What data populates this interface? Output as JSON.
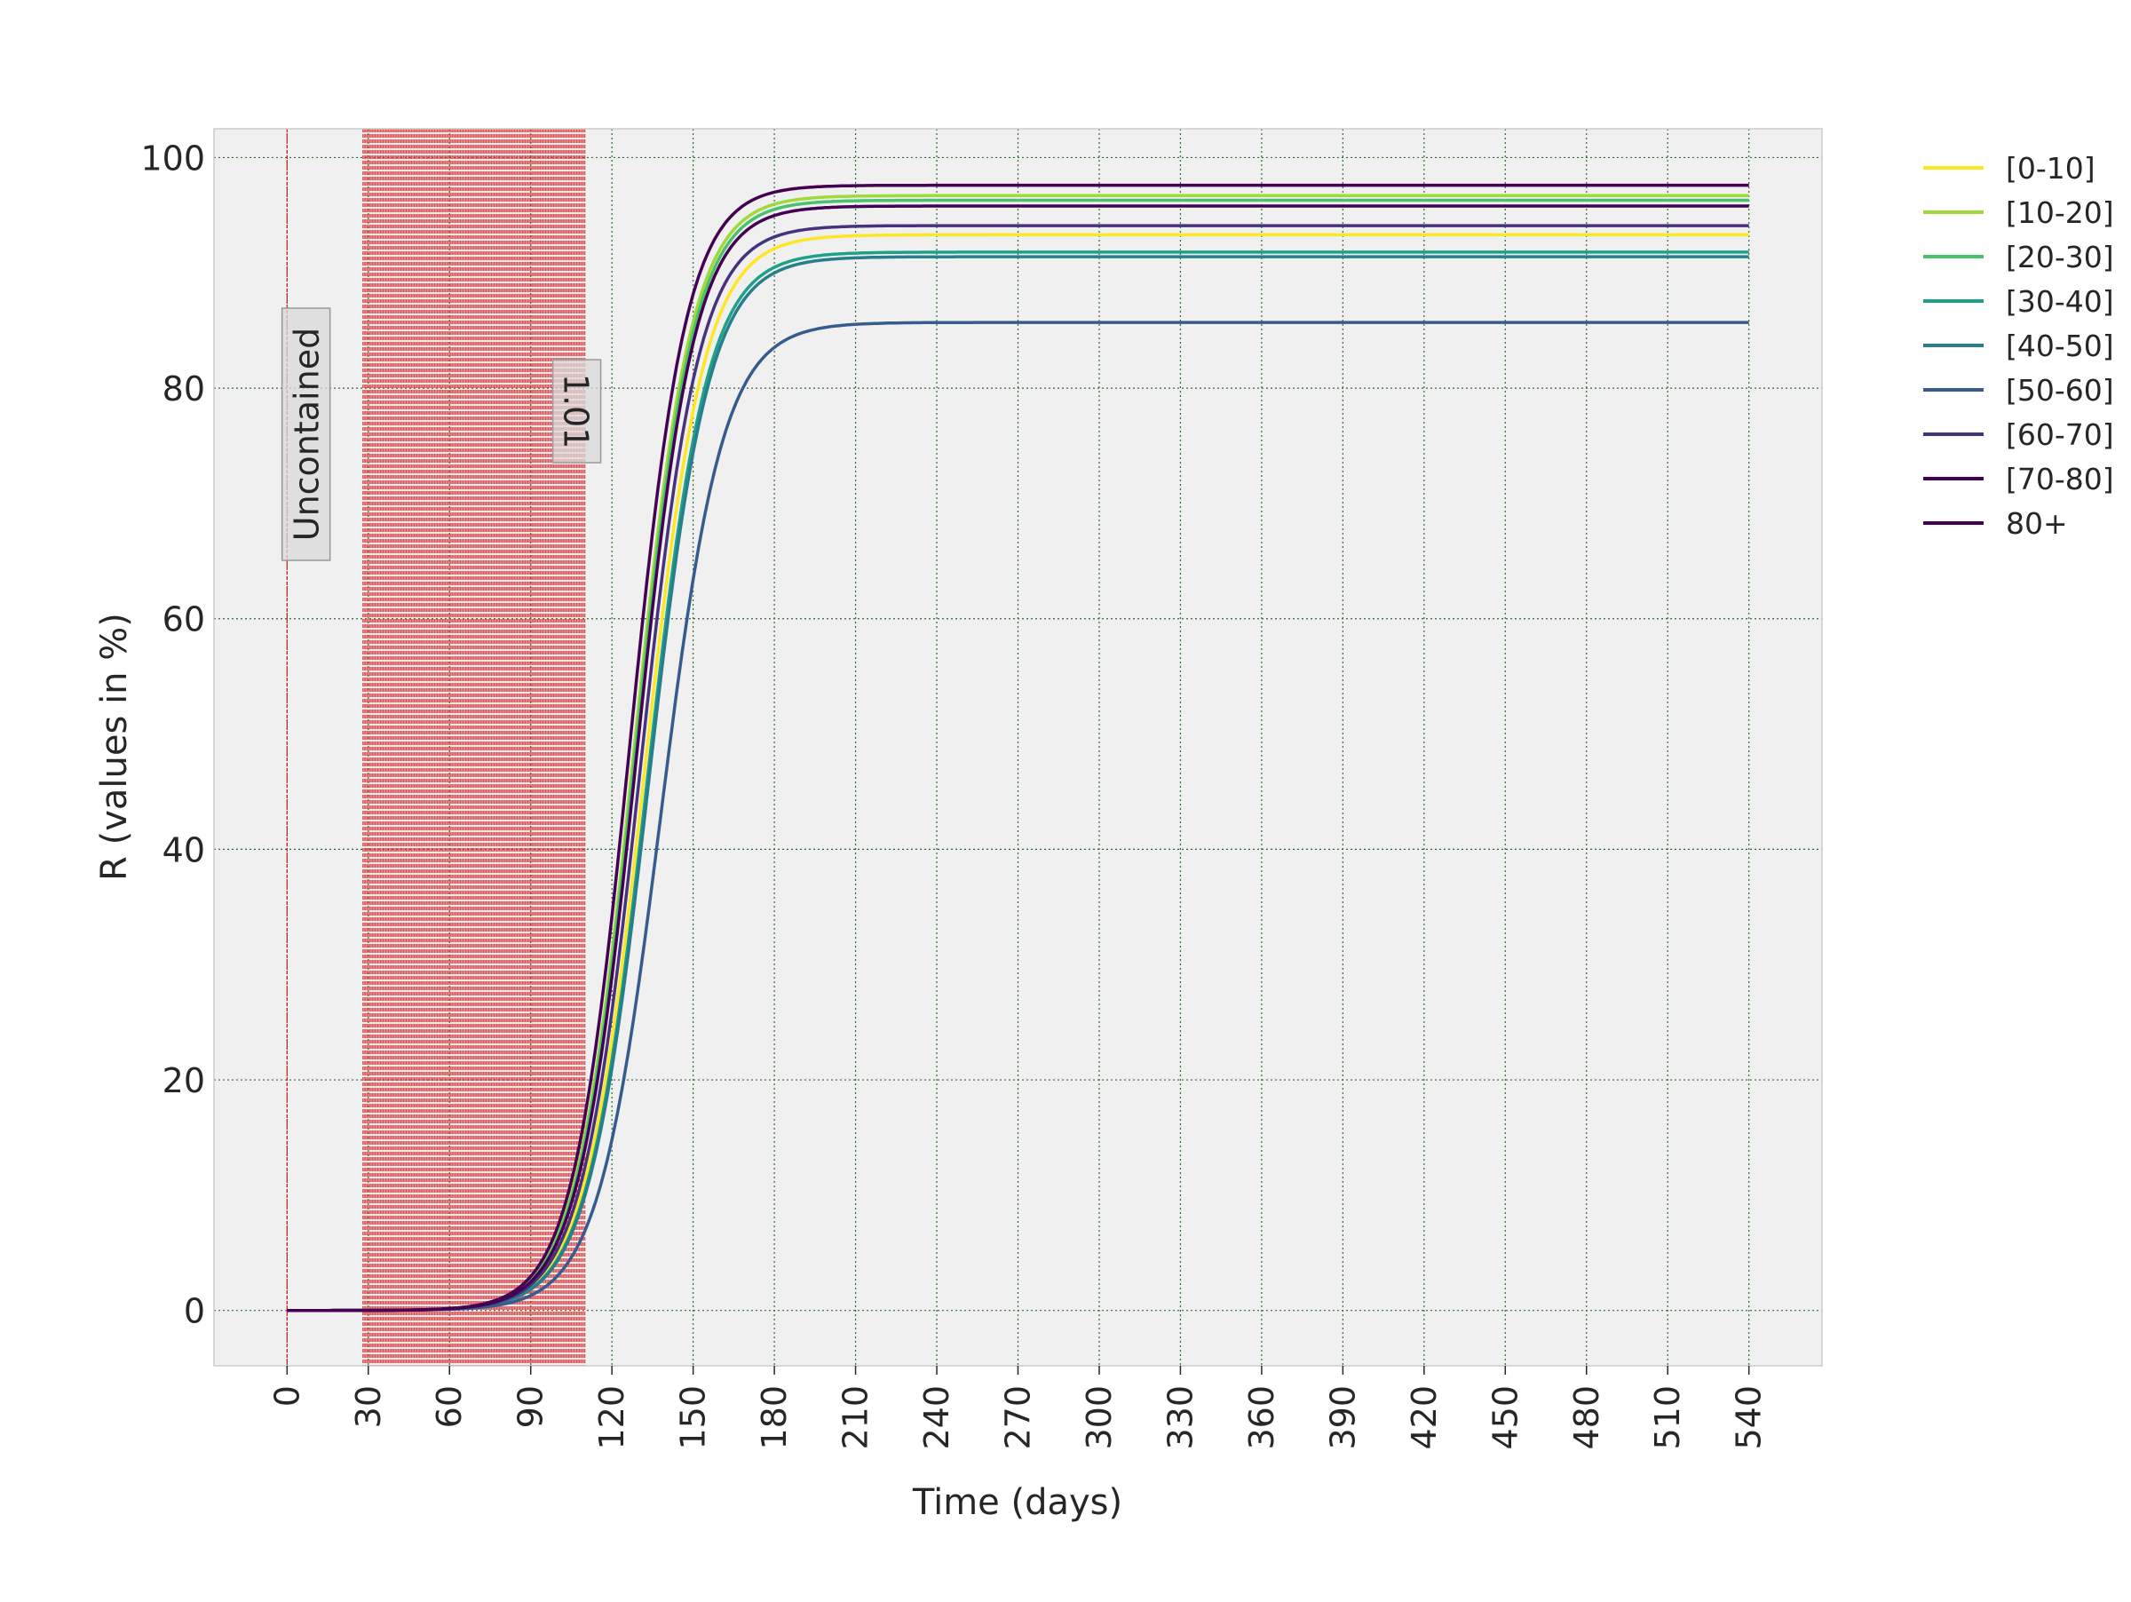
{
  "chart_data": {
    "type": "line",
    "title": "",
    "xlabel": "Time (days)",
    "ylabel": "R (values in %)",
    "xlim": [
      -27,
      567
    ],
    "ylim": [
      -4.8,
      102.5
    ],
    "x_ticks": [
      0,
      30,
      60,
      90,
      120,
      150,
      180,
      210,
      240,
      270,
      300,
      330,
      360,
      390,
      420,
      450,
      480,
      510,
      540
    ],
    "y_ticks": [
      0,
      20,
      40,
      60,
      80,
      100
    ],
    "grid": true,
    "legend_position": "outside-right",
    "x_range_start": 0,
    "x_range_end": 540,
    "series": [
      {
        "name": "[0-10]",
        "color": "#fde725",
        "plateau": 93.3,
        "midpoint": 132,
        "rate": 0.0905
      },
      {
        "name": "[10-20]",
        "color": "#a0da39",
        "plateau": 96.7,
        "midpoint": 128,
        "rate": 0.0935
      },
      {
        "name": "[20-30]",
        "color": "#4ac16d",
        "plateau": 96.3,
        "midpoint": 128.5,
        "rate": 0.093
      },
      {
        "name": "[30-40]",
        "color": "#1fa187",
        "plateau": 91.8,
        "midpoint": 133,
        "rate": 0.09
      },
      {
        "name": "[40-50]",
        "color": "#277f8e",
        "plateau": 91.4,
        "midpoint": 133.5,
        "rate": 0.0895
      },
      {
        "name": "[50-60]",
        "color": "#365c8d",
        "plateau": 85.7,
        "midpoint": 138,
        "rate": 0.087
      },
      {
        "name": "[60-70]",
        "color": "#46327e",
        "plateau": 94.1,
        "midpoint": 130.5,
        "rate": 0.092
      },
      {
        "name": "[70-80]",
        "color": "#440154",
        "plateau": 95.8,
        "midpoint": 129,
        "rate": 0.093
      },
      {
        "name": "80+",
        "color": "#440154",
        "plateau": 97.6,
        "midpoint": 126.5,
        "rate": 0.095
      }
    ],
    "event_lines": {
      "color": "#e31a1c",
      "single_day": 0,
      "band_start": 28,
      "band_end": 110
    },
    "annotations": [
      {
        "text": "Uncontained",
        "x": 7,
        "y": 76,
        "rotation": -90
      },
      {
        "text": "1.01",
        "x": 107,
        "y": 78,
        "rotation": 90
      }
    ]
  }
}
